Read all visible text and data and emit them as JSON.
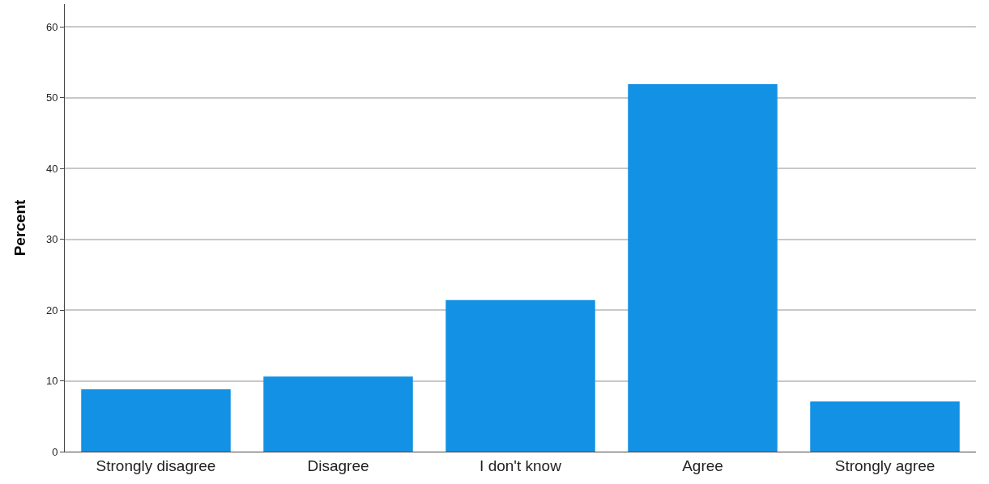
{
  "chart_data": {
    "type": "bar",
    "ylabel": "Percent",
    "categories": [
      "Strongly disagree",
      "Disagree",
      "I don't know",
      "Agree",
      "Strongly agree"
    ],
    "values": [
      8.8,
      10.6,
      21.4,
      51.9,
      7.1
    ],
    "color": "#1391e4",
    "ylim": [
      0,
      63.2
    ],
    "yticks": [
      0,
      10,
      20,
      30,
      40,
      50,
      60
    ],
    "grid": "y"
  }
}
